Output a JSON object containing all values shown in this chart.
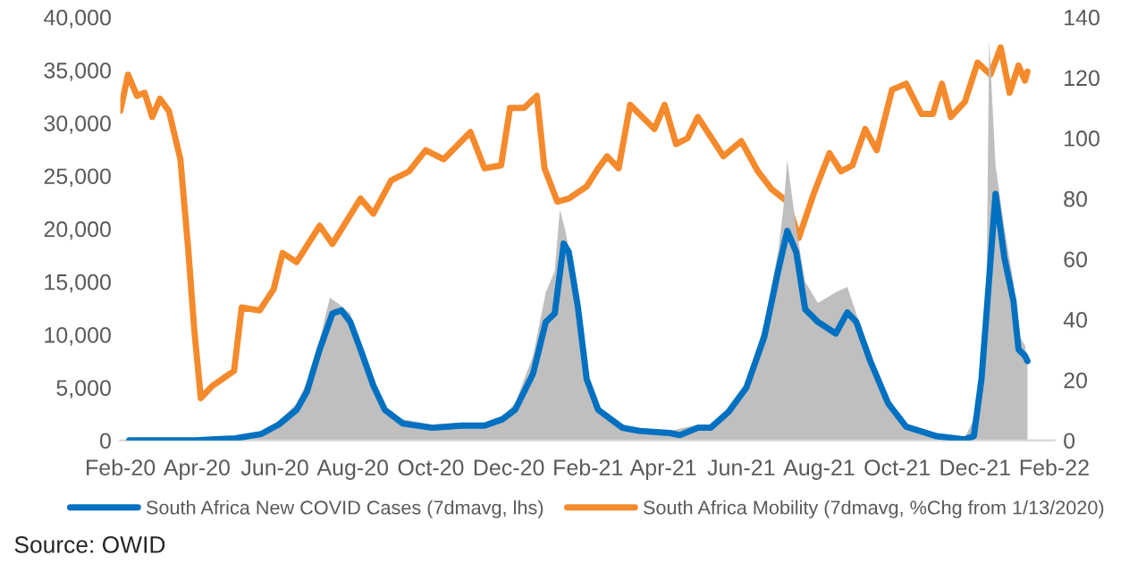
{
  "chart_data": {
    "type": "line",
    "xlim": [
      "2020-02-01",
      "2022-02-01"
    ],
    "xticks": [
      {
        "value": "2020-02-01",
        "label": "Feb-20"
      },
      {
        "value": "2020-04-01",
        "label": "Apr-20"
      },
      {
        "value": "2020-06-01",
        "label": "Jun-20"
      },
      {
        "value": "2020-08-01",
        "label": "Aug-20"
      },
      {
        "value": "2020-10-01",
        "label": "Oct-20"
      },
      {
        "value": "2020-12-01",
        "label": "Dec-20"
      },
      {
        "value": "2021-02-01",
        "label": "Feb-21"
      },
      {
        "value": "2021-04-01",
        "label": "Apr-21"
      },
      {
        "value": "2021-06-01",
        "label": "Jun-21"
      },
      {
        "value": "2021-08-01",
        "label": "Aug-21"
      },
      {
        "value": "2021-10-01",
        "label": "Oct-21"
      },
      {
        "value": "2021-12-01",
        "label": "Dec-21"
      },
      {
        "value": "2022-02-01",
        "label": "Feb-22"
      }
    ],
    "ylim": [
      0,
      40000
    ],
    "yticks": [
      0,
      {
        "value": 5000,
        "label": "5,000"
      },
      {
        "value": 10000,
        "label": "10,000"
      },
      {
        "value": 15000,
        "label": "15,000"
      },
      {
        "value": 20000,
        "label": "20,000"
      },
      {
        "value": 25000,
        "label": "25,000"
      },
      {
        "value": 30000,
        "label": "30,000"
      },
      {
        "value": 35000,
        "label": "35,000"
      },
      {
        "value": 40000,
        "label": "40,000"
      }
    ],
    "y2lim": [
      0,
      140
    ],
    "y2ticks": [
      0,
      20,
      40,
      60,
      80,
      100,
      120,
      140
    ],
    "grid": false,
    "legend": "bottom",
    "annotations": [
      "Source: OWID"
    ],
    "series": [
      {
        "type": "area",
        "color": "#bfbfbf",
        "x": [
          "2020-02-08",
          "2020-04-01",
          "2020-05-01",
          "2020-05-21",
          "2020-06-04",
          "2020-06-18",
          "2020-06-26",
          "2020-07-06",
          "2020-07-14",
          "2020-07-20",
          "2020-07-30",
          "2020-08-07",
          "2020-08-17",
          "2020-08-26",
          "2020-09-09",
          "2020-10-02",
          "2020-10-25",
          "2020-11-12",
          "2020-11-26",
          "2020-12-06",
          "2020-12-20",
          "2020-12-30",
          "2021-01-06",
          "2021-01-10",
          "2021-01-14",
          "2021-01-24",
          "2021-01-31",
          "2021-02-09",
          "2021-02-28",
          "2021-03-13",
          "2021-04-06",
          "2021-04-28",
          "2021-05-08",
          "2021-05-22",
          "2021-06-05",
          "2021-06-19",
          "2021-06-30",
          "2021-07-04",
          "2021-07-07",
          "2021-07-14",
          "2021-07-21",
          "2021-07-31",
          "2021-08-14",
          "2021-08-23",
          "2021-08-30",
          "2021-09-10",
          "2021-09-24",
          "2021-10-08",
          "2021-11-01",
          "2021-11-23",
          "2021-11-30",
          "2021-12-06",
          "2021-12-10",
          "2021-12-12",
          "2021-12-17",
          "2021-12-24",
          "2021-12-31",
          "2022-01-04",
          "2022-01-09",
          "2022-01-11"
        ],
        "values": [
          0,
          100,
          300,
          800,
          1800,
          3500,
          5500,
          9500,
          13500,
          13000,
          12000,
          9000,
          5500,
          3000,
          2000,
          1500,
          1700,
          1700,
          2300,
          3500,
          8000,
          14000,
          16000,
          21800,
          20000,
          14000,
          6500,
          3000,
          1500,
          1200,
          900,
          1500,
          1500,
          3000,
          5500,
          11000,
          18000,
          22000,
          26500,
          20000,
          15000,
          13000,
          14000,
          14500,
          12000,
          8000,
          4000,
          1500,
          500,
          300,
          2000,
          8000,
          15000,
          37900,
          26000,
          20000,
          15000,
          10000,
          9000,
          7500
        ]
      },
      {
        "name": "South Africa New COVID Cases (7dmavg, lhs)",
        "color": "#0070c0",
        "x": [
          "2020-02-08",
          "2020-03-30",
          "2020-05-01",
          "2020-05-21",
          "2020-06-04",
          "2020-06-18",
          "2020-06-26",
          "2020-07-06",
          "2020-07-16",
          "2020-07-23",
          "2020-07-30",
          "2020-08-07",
          "2020-08-17",
          "2020-08-26",
          "2020-09-09",
          "2020-10-02",
          "2020-10-25",
          "2020-11-12",
          "2020-11-26",
          "2020-12-06",
          "2020-12-20",
          "2020-12-30",
          "2021-01-06",
          "2021-01-13",
          "2021-01-17",
          "2021-01-24",
          "2021-01-31",
          "2021-02-09",
          "2021-02-28",
          "2021-03-13",
          "2021-04-06",
          "2021-04-14",
          "2021-04-28",
          "2021-05-08",
          "2021-05-22",
          "2021-06-05",
          "2021-06-19",
          "2021-06-30",
          "2021-07-07",
          "2021-07-14",
          "2021-07-21",
          "2021-07-31",
          "2021-08-14",
          "2021-08-23",
          "2021-08-30",
          "2021-09-10",
          "2021-09-24",
          "2021-10-08",
          "2021-11-01",
          "2021-11-23",
          "2021-11-30",
          "2021-12-06",
          "2021-12-10",
          "2021-12-17",
          "2021-12-24",
          "2021-12-31",
          "2022-01-04",
          "2022-01-09",
          "2022-01-11"
        ],
        "values": [
          0,
          0,
          200,
          600,
          1500,
          2900,
          4600,
          8600,
          12000,
          12300,
          11200,
          8600,
          5200,
          2900,
          1600,
          1200,
          1400,
          1400,
          2000,
          2900,
          6300,
          11200,
          12000,
          18600,
          17800,
          12700,
          5800,
          2900,
          1200,
          900,
          700,
          500,
          1200,
          1200,
          2700,
          5000,
          9800,
          16100,
          19800,
          17800,
          12400,
          11200,
          10100,
          12100,
          11200,
          7500,
          3500,
          1300,
          400,
          100,
          400,
          5800,
          12100,
          23300,
          17200,
          13200,
          8600,
          8000,
          7500
        ]
      },
      {
        "name": "South Africa Mobility (7dmavg, %Chg from 1/13/2020)",
        "color": "#f58a2c",
        "axis": "y2",
        "x": [
          "2020-02-01",
          "2020-02-07",
          "2020-02-14",
          "2020-02-20",
          "2020-02-26",
          "2020-03-03",
          "2020-03-10",
          "2020-03-19",
          "2020-03-25",
          "2020-03-30",
          "2020-04-04",
          "2020-04-13",
          "2020-04-30",
          "2020-05-06",
          "2020-05-20",
          "2020-05-31",
          "2020-06-07",
          "2020-06-18",
          "2020-07-06",
          "2020-07-16",
          "2020-08-07",
          "2020-08-17",
          "2020-08-31",
          "2020-09-14",
          "2020-09-27",
          "2020-10-11",
          "2020-11-01",
          "2020-11-12",
          "2020-11-25",
          "2020-12-02",
          "2020-12-13",
          "2020-12-23",
          "2020-12-29",
          "2021-01-08",
          "2021-01-17",
          "2021-01-31",
          "2021-02-09",
          "2021-02-16",
          "2021-02-25",
          "2021-03-06",
          "2021-03-25",
          "2021-04-02",
          "2021-04-11",
          "2021-04-20",
          "2021-04-28",
          "2021-05-18",
          "2021-06-01",
          "2021-06-14",
          "2021-06-25",
          "2021-07-07",
          "2021-07-16",
          "2021-07-28",
          "2021-08-09",
          "2021-08-18",
          "2021-08-27",
          "2021-09-06",
          "2021-09-15",
          "2021-09-27",
          "2021-10-08",
          "2021-10-20",
          "2021-10-29",
          "2021-11-05",
          "2021-11-12",
          "2021-11-23",
          "2021-12-03",
          "2021-12-13",
          "2021-12-21",
          "2021-12-28",
          "2022-01-04",
          "2022-01-09",
          "2022-01-11"
        ],
        "values": [
          109,
          121,
          114,
          115,
          107,
          113,
          109,
          93,
          64,
          36,
          14,
          18,
          23,
          44,
          43,
          50,
          62,
          59,
          71,
          65,
          80,
          75,
          86,
          89,
          96,
          93,
          102,
          90,
          91,
          110,
          110,
          114,
          90,
          79,
          80,
          84,
          90,
          94,
          90,
          111,
          103,
          111,
          98,
          100,
          107,
          94,
          99,
          89,
          83,
          79,
          67,
          82,
          95,
          89,
          91,
          103,
          96,
          116,
          118,
          108,
          108,
          118,
          107,
          112,
          125,
          121,
          130,
          115,
          124,
          119,
          122
        ]
      }
    ]
  }
}
